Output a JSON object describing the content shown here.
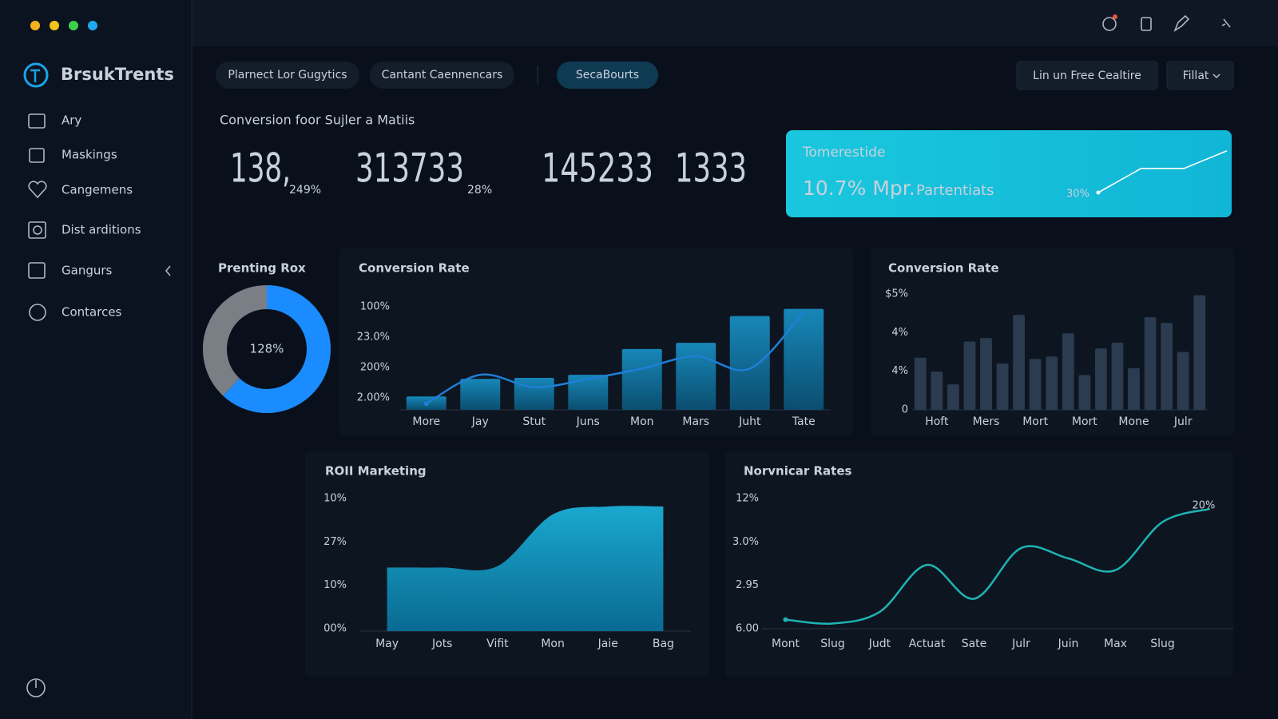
{
  "sidebar": {
    "brand": "BrsukTrents",
    "nav": [
      "Ary",
      "Maskings",
      "Cangemens",
      "Dist arditions",
      "Gangurs",
      "Contarces"
    ]
  },
  "toolbar": {
    "tabs": [
      "Plarnect Lor Gugytics",
      "Cantant Caennencars",
      "SecaBourts"
    ],
    "active_tab": 2,
    "actions": [
      "Lin un Free Cealtire",
      "Fillat"
    ]
  },
  "summary": {
    "title": "Conversion foor Sujler a Matiis",
    "kpis": [
      {
        "value": "138,",
        "change": "249%"
      },
      {
        "value": "313733",
        "change": "28%"
      },
      {
        "value": "145233"
      },
      {
        "value": "1333"
      }
    ]
  },
  "highlight": {
    "title": "Tomerestide",
    "value": "10.7% Mpr.",
    "subtitle": "Partentiats",
    "spark": {
      "type": "line",
      "label": "30%",
      "values": [
        0,
        52,
        52,
        90
      ],
      "ylim": [
        0,
        100
      ],
      "color": "#ffffff"
    }
  },
  "chart_data": [
    {
      "type": "pie",
      "donut": true,
      "title": "Prenting Rox",
      "center_label": "128%",
      "values": [
        62,
        38
      ],
      "colors": [
        "#1a8cff",
        "#7a7f86"
      ]
    },
    {
      "type": "bar",
      "title": "Conversion Rate",
      "categories": [
        "More",
        "Jay",
        "Stut",
        "Juns",
        "Mon",
        "Mars",
        "Juht",
        "Tate"
      ],
      "ylim": [
        0,
        100
      ],
      "y_labels": [
        "100%",
        "23.0%",
        "200%",
        "2.00%"
      ],
      "series": [
        {
          "type": "bar",
          "color": "#137fae",
          "values": [
            13,
            30,
            31,
            34,
            59,
            65,
            91,
            98
          ]
        },
        {
          "type": "line",
          "color": "#1f7fd6",
          "values": [
            6,
            34,
            22,
            30,
            40,
            52,
            40,
            95
          ]
        }
      ]
    },
    {
      "type": "bar",
      "title": "Conversion Rate",
      "categories": [
        null,
        "Hoft",
        null,
        null,
        "Mers",
        null,
        null,
        "Mort",
        null,
        null,
        "Mort",
        null,
        null,
        "Mone",
        null,
        null,
        "Julr",
        null
      ],
      "ylim": [
        0,
        100
      ],
      "y_labels": [
        "$5%",
        "4%",
        "4%",
        "0"
      ],
      "series": [
        {
          "type": "bar",
          "color": "#2b3b50",
          "values": [
            45,
            33,
            22,
            59,
            62,
            40,
            82,
            44,
            46,
            66,
            30,
            53,
            58,
            36,
            80,
            75,
            50,
            99
          ]
        }
      ]
    },
    {
      "type": "area",
      "title": "ROII Marketing",
      "categories": [
        "May",
        "Jots",
        "Vifit",
        "Mon",
        "Jaie",
        "Bag"
      ],
      "ylim": [
        0,
        100
      ],
      "y_labels": [
        "10%",
        "27%",
        "10%",
        "00%"
      ],
      "series": [
        {
          "type": "area",
          "color": "#1597c0",
          "values": [
            48,
            48,
            49,
            88,
            94,
            94
          ]
        }
      ]
    },
    {
      "type": "line",
      "title": "Norvnicar Rates",
      "categories": [
        "Mont",
        "Slug",
        "Judt",
        "Actuat",
        "Sate",
        "Julr",
        "Juin",
        "Max",
        "Slug",
        null
      ],
      "ylim": [
        0,
        100
      ],
      "y_labels": [
        "12%",
        "3.0%",
        "2.95",
        "6.00"
      ],
      "end_label": "20%",
      "series": [
        {
          "type": "line",
          "color": "#1fb3b3",
          "values": [
            7,
            4,
            13,
            49,
            23,
            62,
            54,
            45,
            82,
            92
          ]
        }
      ]
    }
  ]
}
